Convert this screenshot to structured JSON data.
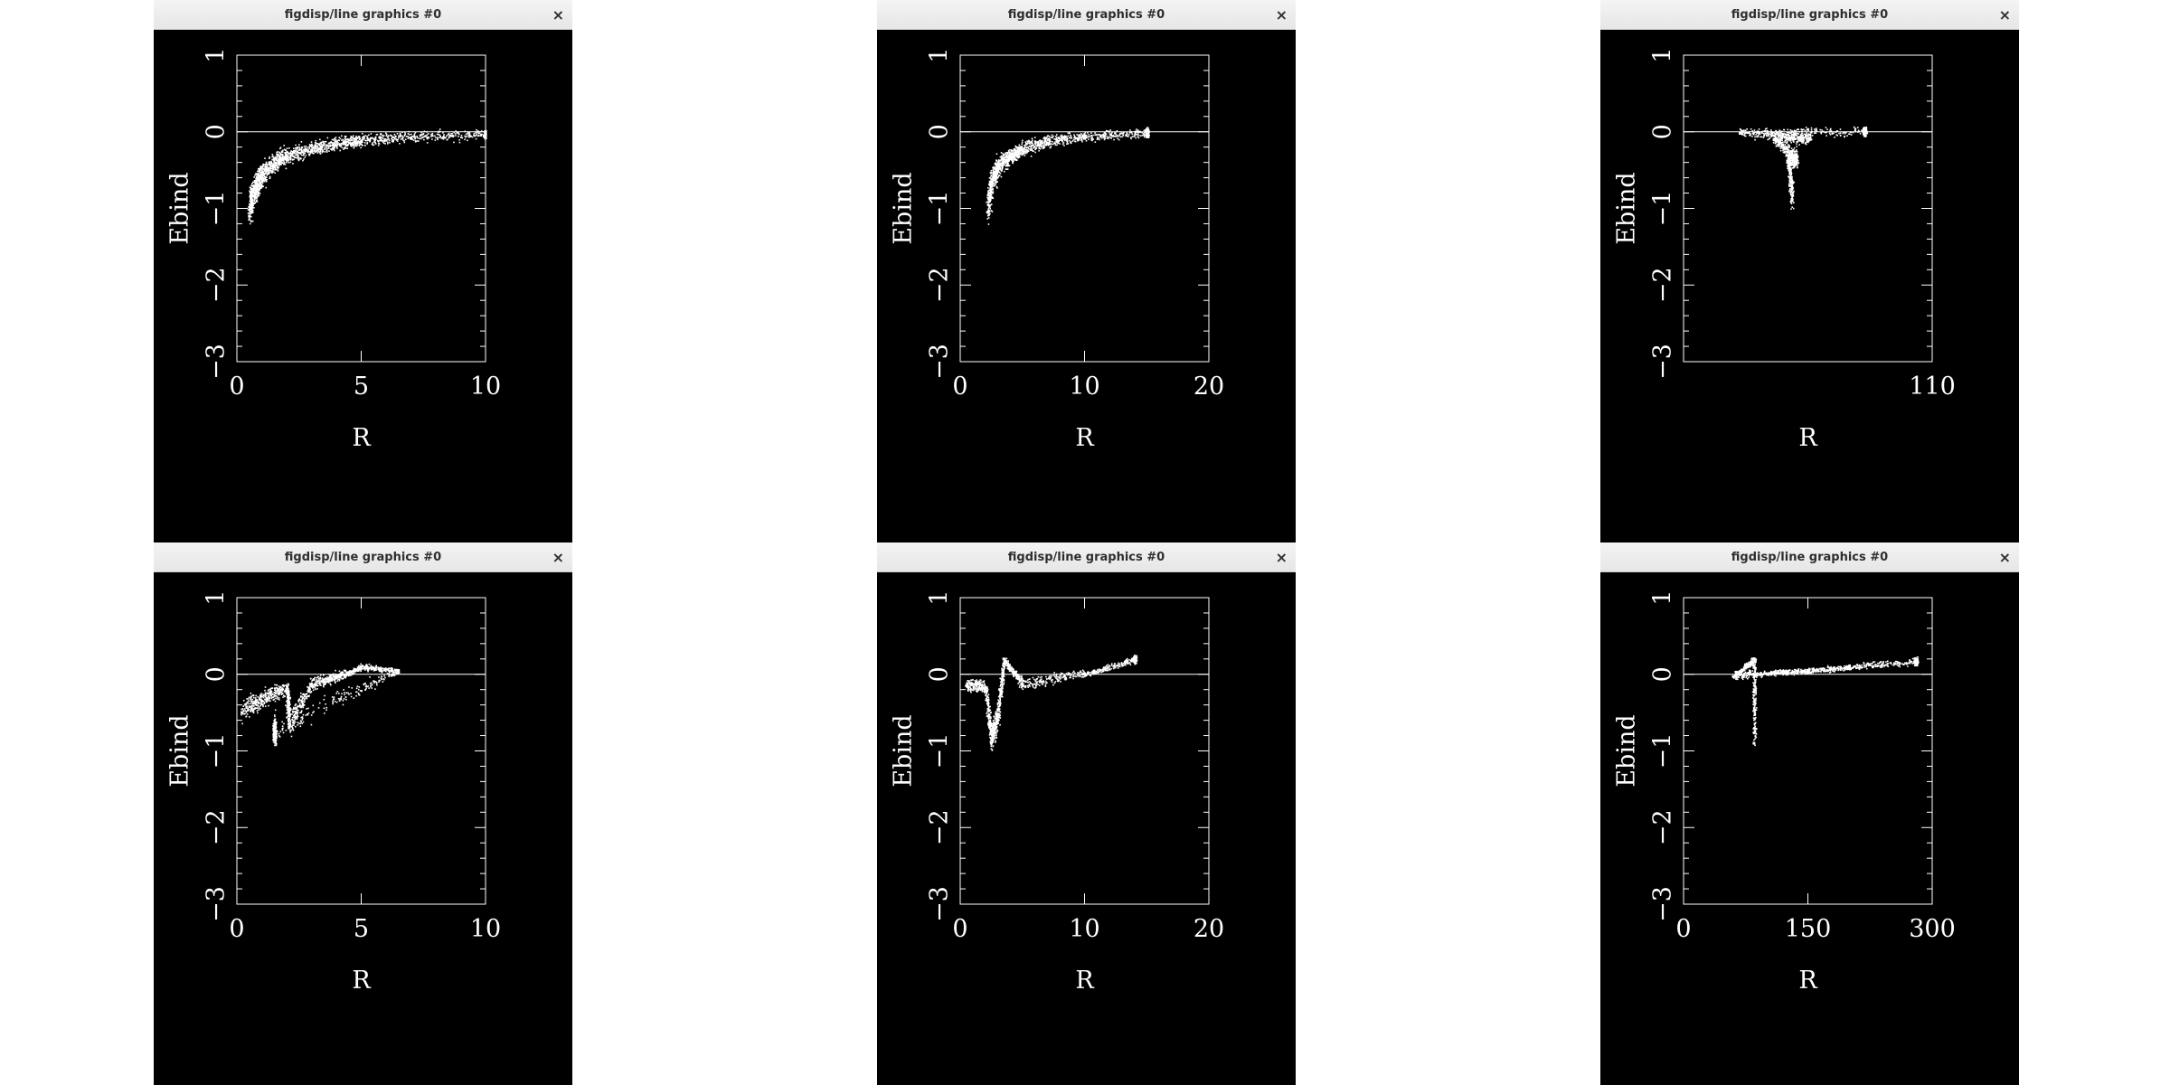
{
  "colors": {
    "background": "#ffffff",
    "plot_bg": "#000000",
    "ink": "#ffffff",
    "titlebar": "#ececec"
  },
  "windows": [
    {
      "title": "figdisp/line graphics #0",
      "close_icon": "×"
    },
    {
      "title": "figdisp/line graphics #0",
      "close_icon": "×"
    },
    {
      "title": "figdisp/line graphics #0",
      "close_icon": "×"
    },
    {
      "title": "figdisp/line graphics #0",
      "close_icon": "×"
    },
    {
      "title": "figdisp/line graphics #0",
      "close_icon": "×"
    },
    {
      "title": "figdisp/line graphics #0",
      "close_icon": "×"
    }
  ],
  "chart_data": [
    {
      "type": "scatter",
      "xlabel": "R",
      "ylabel": "Ebind",
      "xlim": [
        0,
        10
      ],
      "ylim": [
        -3,
        1
      ],
      "xticks": [
        0,
        5,
        10
      ],
      "xtick_labels": [
        "0",
        "5",
        "10"
      ],
      "yticks": [
        1,
        0,
        -1,
        -2,
        -3
      ],
      "ytick_labels": [
        "1",
        "0",
        "−1",
        "−2",
        "−3"
      ],
      "zero_line": true,
      "series": [
        {
          "values": [
            [
              0.5,
              -1.1
            ],
            [
              0.6,
              -0.9
            ],
            [
              0.8,
              -0.75
            ],
            [
              1,
              -0.6
            ],
            [
              1.5,
              -0.45
            ],
            [
              2,
              -0.35
            ],
            [
              3,
              -0.25
            ],
            [
              4,
              -0.18
            ],
            [
              5,
              -0.13
            ],
            [
              7,
              -0.08
            ],
            [
              10,
              -0.05
            ]
          ]
        }
      ]
    },
    {
      "type": "scatter",
      "xlabel": "R",
      "ylabel": "Ebind",
      "xlim": [
        0,
        20
      ],
      "ylim": [
        -3,
        1
      ],
      "xticks": [
        0,
        10,
        20
      ],
      "xtick_labels": [
        "0",
        "10",
        "20"
      ],
      "yticks": [
        1,
        0,
        -1,
        -2,
        -3
      ],
      "ytick_labels": [
        "1",
        "0",
        "−1",
        "−2",
        "−3"
      ],
      "zero_line": true,
      "series": [
        {
          "values": [
            [
              2.2,
              -1.05
            ],
            [
              2.5,
              -0.7
            ],
            [
              3,
              -0.5
            ],
            [
              4,
              -0.35
            ],
            [
              5,
              -0.25
            ],
            [
              7,
              -0.15
            ],
            [
              10,
              -0.08
            ],
            [
              15,
              -0.03
            ]
          ]
        }
      ]
    },
    {
      "type": "scatter",
      "xlabel": "R",
      "ylabel": "Ebind",
      "xlim": [
        0,
        110
      ],
      "ylim": [
        -3,
        1
      ],
      "xticks": [
        110
      ],
      "xtick_labels": [
        "110"
      ],
      "yticks": [
        1,
        0,
        -1,
        -2,
        -3
      ],
      "ytick_labels": [
        "1",
        "0",
        "−1",
        "−2",
        "−3"
      ],
      "zero_line": true,
      "series": [
        {
          "values": [
            [
              48,
              -0.9
            ],
            [
              46,
              -0.4
            ],
            [
              50,
              -0.4
            ],
            [
              40,
              -0.1
            ],
            [
              56,
              -0.1
            ],
            [
              25,
              -0.02
            ],
            [
              80,
              -0.01
            ]
          ]
        }
      ]
    },
    {
      "type": "scatter",
      "xlabel": "R",
      "ylabel": "Ebind",
      "xlim": [
        0,
        10
      ],
      "ylim": [
        -3,
        1
      ],
      "xticks": [
        0,
        5,
        10
      ],
      "xtick_labels": [
        "0",
        "5",
        "10"
      ],
      "yticks": [
        1,
        0,
        -1,
        -2,
        -3
      ],
      "ytick_labels": [
        "1",
        "0",
        "−1",
        "−2",
        "−3"
      ],
      "zero_line": true,
      "series": [
        {
          "values": [
            [
              0.2,
              -0.5
            ],
            [
              1,
              -0.35
            ],
            [
              2,
              -0.2
            ],
            [
              2.1,
              -0.7
            ],
            [
              3,
              -0.15
            ],
            [
              4,
              -0.05
            ],
            [
              5,
              0.1
            ],
            [
              6.5,
              0.05
            ],
            [
              1.5,
              -0.8
            ]
          ]
        }
      ]
    },
    {
      "type": "scatter",
      "xlabel": "R",
      "ylabel": "Ebind",
      "xlim": [
        0,
        20
      ],
      "ylim": [
        -3,
        1
      ],
      "xticks": [
        0,
        10,
        20
      ],
      "xtick_labels": [
        "0",
        "10",
        "20"
      ],
      "yticks": [
        1,
        0,
        -1,
        -2,
        -3
      ],
      "ytick_labels": [
        "1",
        "0",
        "−1",
        "−2",
        "−3"
      ],
      "zero_line": true,
      "series": [
        {
          "values": [
            [
              0.5,
              -0.15
            ],
            [
              2,
              -0.2
            ],
            [
              2.5,
              -0.9
            ],
            [
              3,
              -0.6
            ],
            [
              3.5,
              0.2
            ],
            [
              5,
              -0.15
            ],
            [
              10,
              0
            ],
            [
              14,
              0.2
            ]
          ]
        }
      ]
    },
    {
      "type": "scatter",
      "xlabel": "R",
      "ylabel": "Ebind",
      "xlim": [
        0,
        300
      ],
      "ylim": [
        -3,
        1
      ],
      "xticks": [
        0,
        150,
        300
      ],
      "xtick_labels": [
        "0",
        "150",
        "300"
      ],
      "yticks": [
        1,
        0,
        -1,
        -2,
        -3
      ],
      "ytick_labels": [
        "1",
        "0",
        "−1",
        "−2",
        "−3"
      ],
      "zero_line": true,
      "series": [
        {
          "values": [
            [
              85,
              -0.9
            ],
            [
              85,
              0.2
            ],
            [
              60,
              -0.03
            ],
            [
              110,
              0.03
            ],
            [
              150,
              0.05
            ],
            [
              200,
              0.1
            ],
            [
              280,
              0.17
            ]
          ]
        }
      ]
    }
  ]
}
